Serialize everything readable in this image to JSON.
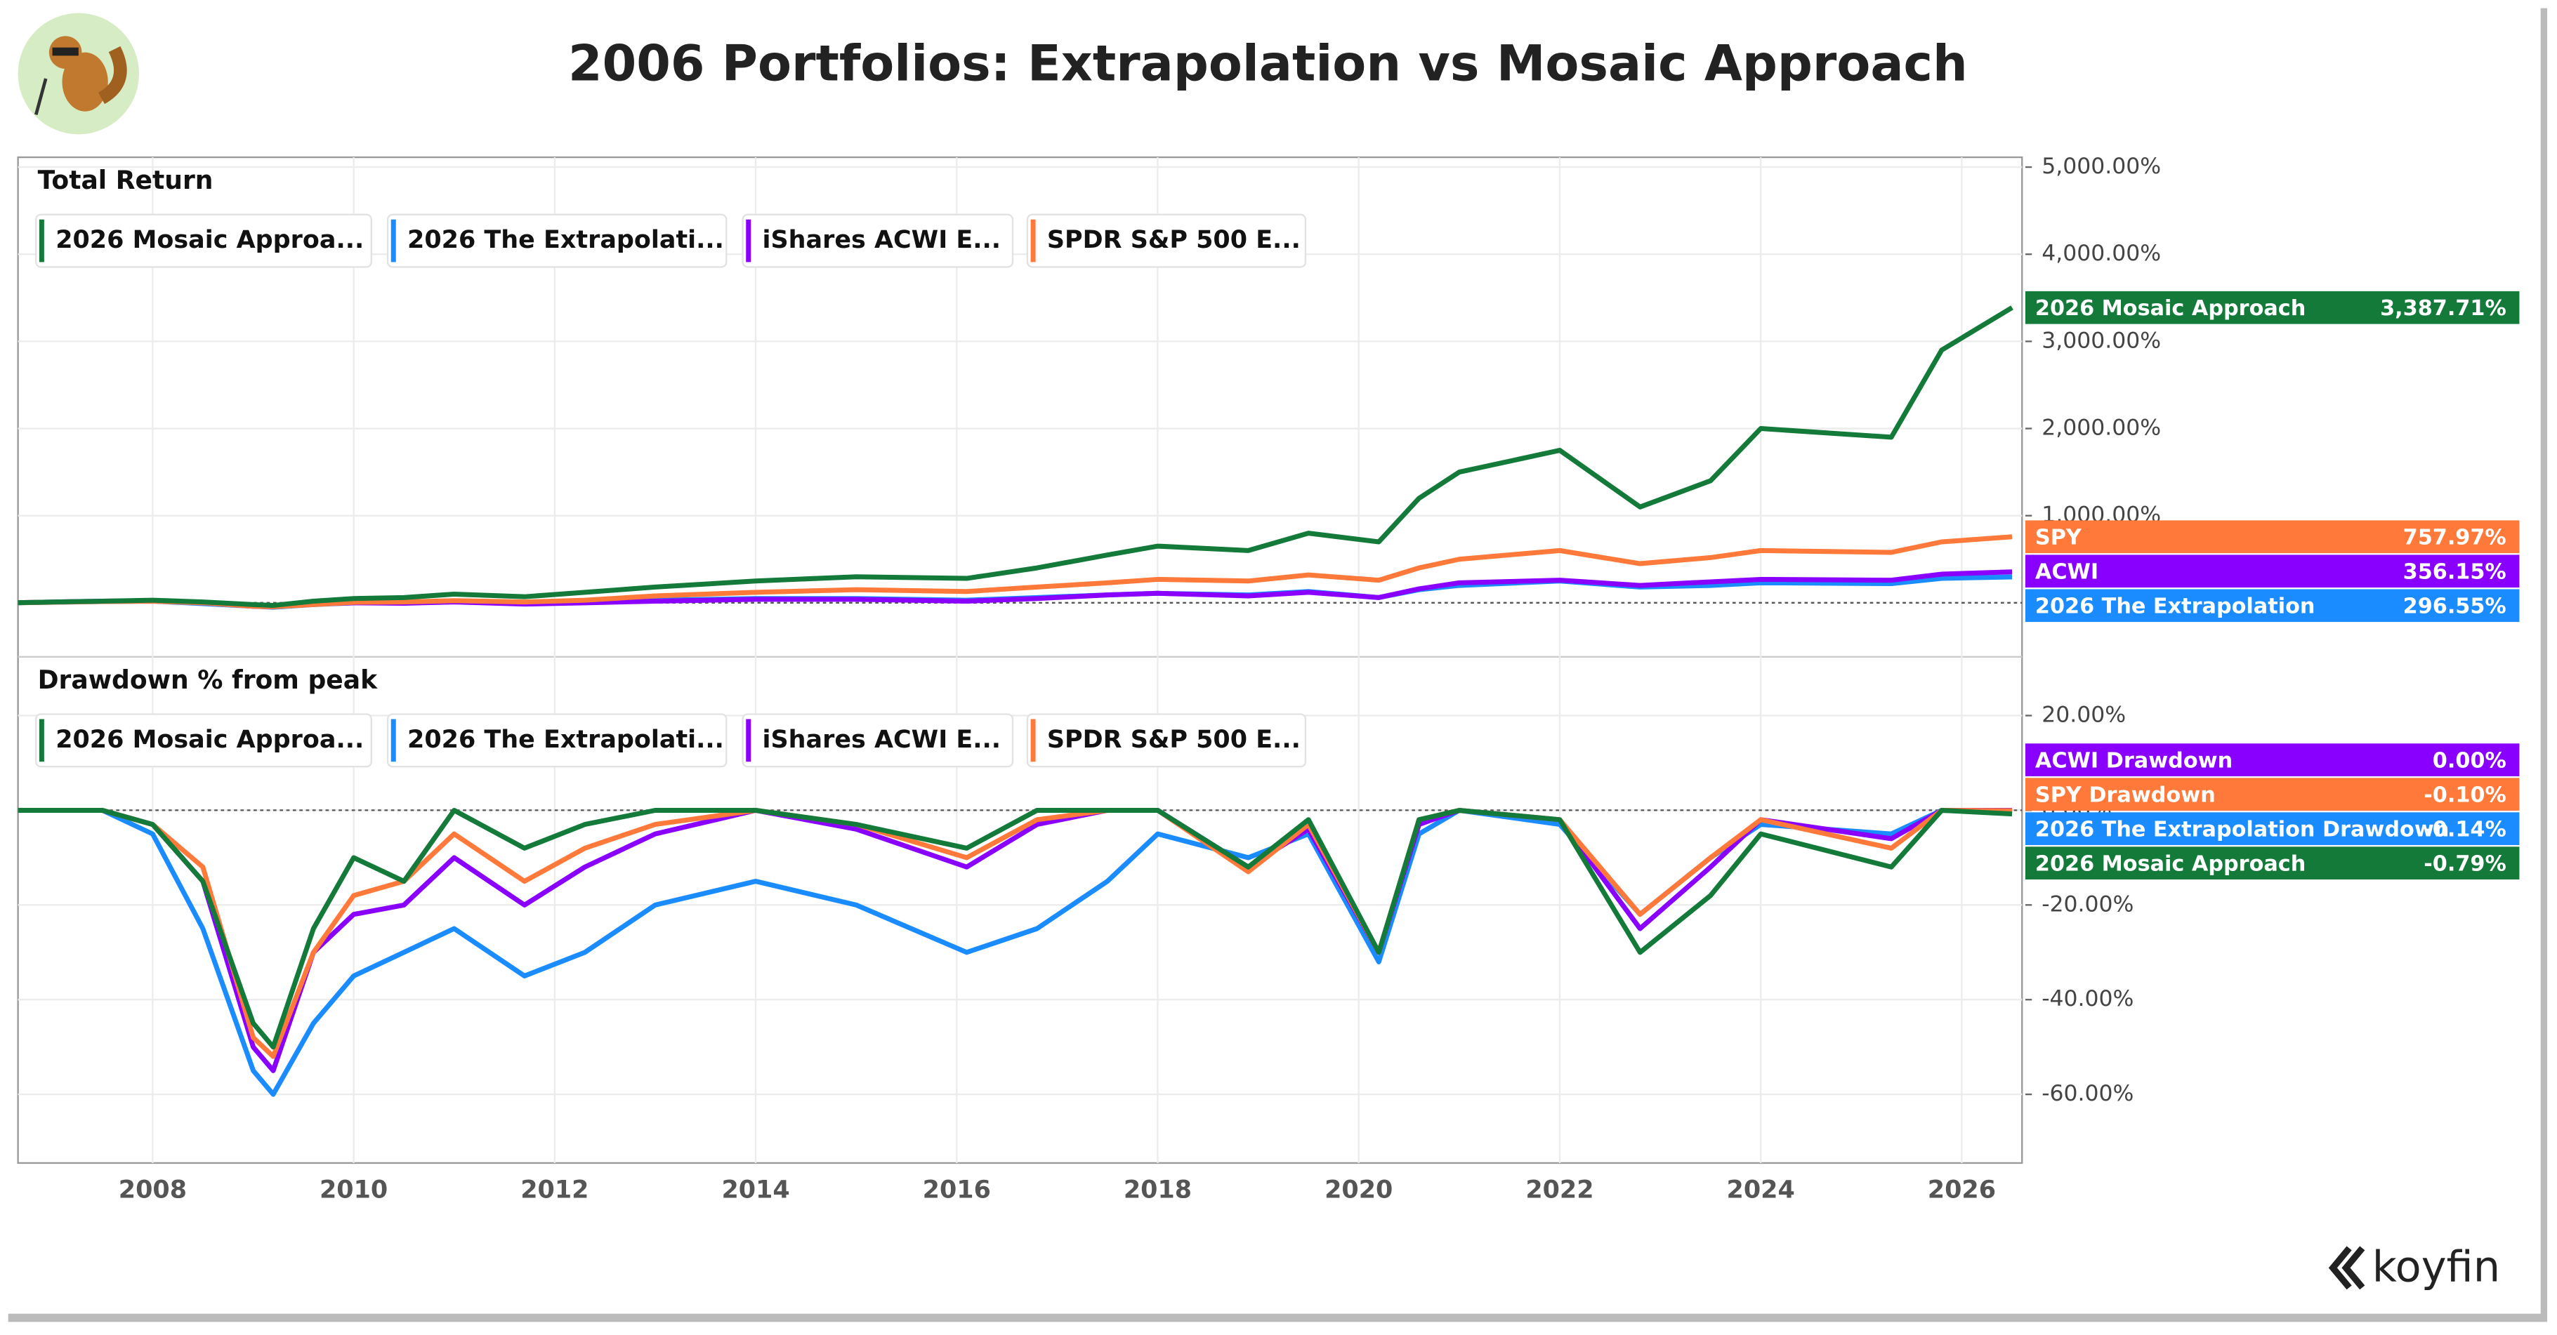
{
  "header": {
    "title": "2006 Portfolios: Extrapolation vs Mosaic Approach",
    "brand": "koyfin"
  },
  "chart_data": [
    {
      "type": "line",
      "title": "Total Return",
      "x": [
        2006.6,
        2007.5,
        2008.0,
        2008.5,
        2009.0,
        2009.2,
        2009.6,
        2010.0,
        2010.5,
        2011.0,
        2011.7,
        2012.3,
        2013.0,
        2014.0,
        2015.0,
        2016.1,
        2016.8,
        2017.5,
        2018.0,
        2018.9,
        2019.5,
        2020.2,
        2020.6,
        2021.0,
        2022.0,
        2022.8,
        2023.5,
        2024.0,
        2025.3,
        2025.8,
        2026.5
      ],
      "xlim": [
        2006.66,
        2026.6
      ],
      "xticks": [
        2008,
        2010,
        2012,
        2014,
        2016,
        2018,
        2020,
        2022,
        2024,
        2026
      ],
      "ylim": [
        -620,
        5113
      ],
      "yticks": [
        {
          "value": 1000,
          "label": "1,000.00%"
        },
        {
          "value": 2000,
          "label": "2,000.00%"
        },
        {
          "value": 3000,
          "label": "3,000.00%"
        },
        {
          "value": 4000,
          "label": "4,000.00%"
        },
        {
          "value": 5000,
          "label": "5,000.00%"
        }
      ],
      "grid": true,
      "series": [
        {
          "name": "2026 Mosaic Approa...",
          "color": "#137a3a",
          "end_label": "2026 Mosaic Approach",
          "end_value": 3387.71,
          "end_value_label": "3,387.71%",
          "values": [
            0,
            20,
            30,
            10,
            -20,
            -30,
            20,
            50,
            60,
            100,
            70,
            120,
            180,
            250,
            300,
            280,
            400,
            550,
            650,
            600,
            800,
            700,
            1200,
            1500,
            1750,
            1100,
            1400,
            2000,
            1900,
            2900,
            3387.71
          ]
        },
        {
          "name": "2026 The Extrapolati...",
          "color": "#1a8cff",
          "end_label": "2026 The Extrapolation",
          "end_value": 296.55,
          "end_value_label": "296.55%",
          "values": [
            0,
            15,
            20,
            -10,
            -40,
            -50,
            -20,
            0,
            5,
            20,
            -10,
            10,
            30,
            50,
            50,
            30,
            60,
            90,
            110,
            90,
            130,
            60,
            150,
            200,
            250,
            180,
            200,
            230,
            220,
            280,
            296.55
          ]
        },
        {
          "name": "iShares ACWI E...",
          "color": "#8a00ff",
          "end_label": "ACWI",
          "end_value": 356.15,
          "end_value_label": "356.15%",
          "values": [
            0,
            20,
            25,
            0,
            -40,
            -45,
            -15,
            0,
            -5,
            10,
            -15,
            0,
            20,
            40,
            40,
            20,
            50,
            90,
            110,
            80,
            120,
            60,
            160,
            230,
            260,
            200,
            240,
            270,
            260,
            330,
            356.15
          ]
        },
        {
          "name": "SPDR S&P 500 E...",
          "color": "#ff7a3a",
          "end_label": "SPY",
          "end_value": 757.97,
          "end_value_label": "757.97%",
          "values": [
            0,
            15,
            20,
            0,
            -40,
            -45,
            -20,
            5,
            10,
            25,
            10,
            30,
            80,
            120,
            150,
            130,
            180,
            230,
            270,
            250,
            320,
            260,
            400,
            500,
            600,
            450,
            520,
            600,
            580,
            700,
            757.97
          ]
        }
      ]
    },
    {
      "type": "line",
      "title": "Drawdown % from peak",
      "x": [
        2006.6,
        2007.5,
        2008.0,
        2008.5,
        2009.0,
        2009.2,
        2009.6,
        2010.0,
        2010.5,
        2011.0,
        2011.7,
        2012.3,
        2013.0,
        2014.0,
        2015.0,
        2016.1,
        2016.8,
        2017.5,
        2018.0,
        2018.9,
        2019.5,
        2020.2,
        2020.6,
        2021.0,
        2022.0,
        2022.8,
        2023.5,
        2024.0,
        2025.3,
        2025.8,
        2026.5
      ],
      "xlim": [
        2006.66,
        2026.6
      ],
      "xticks": [
        2008,
        2010,
        2012,
        2014,
        2016,
        2018,
        2020,
        2022,
        2024,
        2026
      ],
      "ylim": [
        -74.5,
        32.4
      ],
      "yticks": [
        {
          "value": -60,
          "label": "-60.00%"
        },
        {
          "value": -40,
          "label": "-40.00%"
        },
        {
          "value": -20,
          "label": "-20.00%"
        },
        {
          "value": 0,
          "label": "0.00%"
        },
        {
          "value": 20,
          "label": "20.00%"
        }
      ],
      "grid": true,
      "series": [
        {
          "name": "2026 Mosaic Approa...",
          "color": "#137a3a",
          "end_label": "2026 Mosaic Approach",
          "end_value": -0.79,
          "end_value_label": "-0.79%",
          "values": [
            0,
            0,
            -3,
            -15,
            -45,
            -50,
            -25,
            -10,
            -15,
            0,
            -8,
            -3,
            0,
            0,
            -3,
            -8,
            0,
            0,
            0,
            -12,
            -2,
            -30,
            -2,
            0,
            -2,
            -30,
            -18,
            -5,
            -12,
            0,
            -0.79
          ]
        },
        {
          "name": "2026 The Extrapolati...",
          "color": "#1a8cff",
          "end_label": "2026 The Extrapolation Drawdown",
          "end_value": -0.14,
          "end_value_label": "-0.14%",
          "values": [
            0,
            0,
            -5,
            -25,
            -55,
            -60,
            -45,
            -35,
            -30,
            -25,
            -35,
            -30,
            -20,
            -15,
            -20,
            -30,
            -25,
            -15,
            -5,
            -10,
            -5,
            -32,
            -5,
            0,
            -3,
            -22,
            -10,
            -3,
            -5,
            0,
            -0.14
          ]
        },
        {
          "name": "iShares ACWI E...",
          "color": "#8a00ff",
          "end_label": "ACWI Drawdown",
          "end_value": 0,
          "end_value_label": "0.00%",
          "values": [
            0,
            0,
            -3,
            -15,
            -50,
            -55,
            -30,
            -22,
            -20,
            -10,
            -20,
            -12,
            -5,
            0,
            -4,
            -12,
            -3,
            0,
            0,
            -12,
            -4,
            -30,
            -3,
            0,
            -2,
            -25,
            -12,
            -2,
            -6,
            0,
            0
          ]
        },
        {
          "name": "SPDR S&P 500 E...",
          "color": "#ff7a3a",
          "end_label": "SPY Drawdown",
          "end_value": -0.1,
          "end_value_label": "-0.10%",
          "values": [
            0,
            0,
            -3,
            -12,
            -48,
            -52,
            -30,
            -18,
            -15,
            -5,
            -15,
            -8,
            -3,
            0,
            -3,
            -10,
            -2,
            0,
            0,
            -13,
            -3,
            -30,
            -2,
            0,
            -2,
            -22,
            -10,
            -2,
            -8,
            0,
            -0.1
          ]
        }
      ]
    }
  ]
}
